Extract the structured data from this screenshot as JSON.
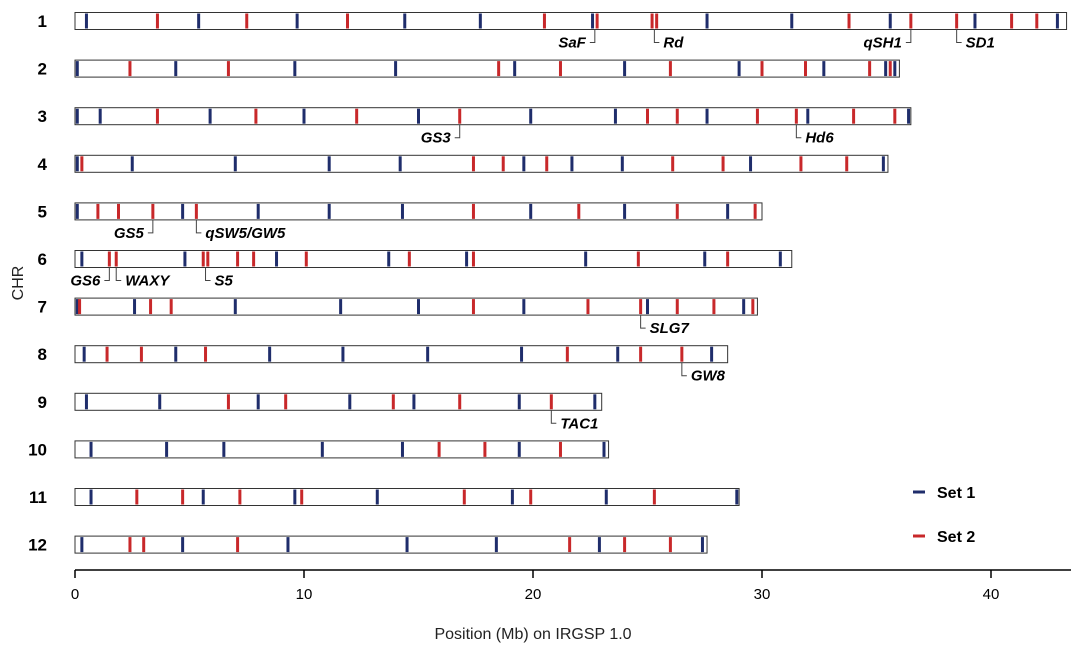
{
  "chart_data": {
    "type": "scatter",
    "xlabel": "Position (Mb) on IRGSP 1.0",
    "ylabel": "CHR",
    "xlim": [
      0,
      43.5
    ],
    "xticks": [
      0,
      10,
      20,
      30,
      40
    ],
    "grid": false,
    "legend_position": "right",
    "series_colors": {
      "Set 1": "#1f2d6b",
      "Set 2": "#c8282a"
    },
    "legend": [
      {
        "name": "Set 1",
        "color": "#1f2d6b"
      },
      {
        "name": "Set 2",
        "color": "#c8282a"
      }
    ],
    "chromosomes": [
      {
        "name": "1",
        "length": 43.3,
        "set1": [
          0.5,
          5.4,
          9.7,
          14.4,
          17.7,
          22.6,
          27.6,
          31.3,
          35.6,
          39.3,
          42.9
        ],
        "set2": [
          3.6,
          7.5,
          11.9,
          20.5,
          22.8,
          25.2,
          25.4,
          33.8,
          36.5,
          38.5,
          40.9,
          42.0
        ]
      },
      {
        "name": "2",
        "length": 36.0,
        "set1": [
          0.1,
          4.4,
          9.6,
          14.0,
          19.2,
          24.0,
          29.0,
          32.7,
          35.4,
          35.8
        ],
        "set2": [
          2.4,
          6.7,
          18.5,
          21.2,
          26.0,
          30.0,
          31.9,
          34.7,
          35.6
        ]
      },
      {
        "name": "3",
        "length": 36.5,
        "set1": [
          0.1,
          1.1,
          5.9,
          10.0,
          15.0,
          19.9,
          23.6,
          27.6,
          32.0,
          36.4
        ],
        "set2": [
          3.6,
          7.9,
          12.3,
          16.8,
          25.0,
          26.3,
          29.8,
          31.5,
          34.0,
          35.8
        ]
      },
      {
        "name": "4",
        "length": 35.5,
        "set1": [
          0.1,
          2.5,
          7.0,
          11.1,
          14.2,
          19.6,
          21.7,
          23.9,
          29.5,
          35.3
        ],
        "set2": [
          0.3,
          17.4,
          18.7,
          20.6,
          26.1,
          28.3,
          31.7,
          33.7
        ]
      },
      {
        "name": "5",
        "length": 30.0,
        "set1": [
          0.1,
          4.7,
          8.0,
          11.1,
          14.3,
          19.9,
          24.0,
          28.5
        ],
        "set2": [
          1.0,
          1.9,
          3.4,
          5.3,
          17.4,
          22.0,
          26.3,
          29.7
        ]
      },
      {
        "name": "6",
        "length": 31.3,
        "set1": [
          0.3,
          4.8,
          8.8,
          13.7,
          17.1,
          22.3,
          27.5,
          30.8
        ],
        "set2": [
          1.5,
          1.8,
          5.6,
          5.8,
          7.1,
          7.8,
          10.1,
          14.6,
          17.4,
          24.6,
          28.5
        ]
      },
      {
        "name": "7",
        "length": 29.8,
        "set1": [
          0.1,
          2.6,
          7.0,
          11.6,
          15.0,
          19.6,
          25.0,
          29.2
        ],
        "set2": [
          0.2,
          3.3,
          4.2,
          17.4,
          22.4,
          24.7,
          26.3,
          27.9,
          29.6
        ]
      },
      {
        "name": "8",
        "length": 28.5,
        "set1": [
          0.4,
          4.4,
          8.5,
          11.7,
          15.4,
          19.5,
          23.7,
          27.8
        ],
        "set2": [
          1.4,
          2.9,
          5.7,
          21.5,
          24.7,
          26.5
        ]
      },
      {
        "name": "9",
        "length": 23.0,
        "set1": [
          0.5,
          3.7,
          8.0,
          12.0,
          14.8,
          19.4,
          22.7
        ],
        "set2": [
          6.7,
          9.2,
          13.9,
          16.8,
          20.8
        ]
      },
      {
        "name": "10",
        "length": 23.3,
        "set1": [
          0.7,
          4.0,
          6.5,
          10.8,
          14.3,
          19.4,
          23.1
        ],
        "set2": [
          15.9,
          17.9,
          21.2
        ]
      },
      {
        "name": "11",
        "length": 29.0,
        "set1": [
          0.7,
          5.6,
          9.6,
          13.2,
          19.1,
          23.2,
          28.9
        ],
        "set2": [
          2.7,
          4.7,
          7.2,
          9.9,
          17.0,
          19.9,
          25.3
        ]
      },
      {
        "name": "12",
        "length": 27.6,
        "set1": [
          0.3,
          4.7,
          9.3,
          14.5,
          18.4,
          22.9,
          27.4
        ],
        "set2": [
          2.4,
          3.0,
          7.1,
          21.6,
          24.0,
          26.0
        ]
      }
    ],
    "annotations": [
      {
        "label": "SaF",
        "chr": 1,
        "pos": 22.7,
        "side": "left"
      },
      {
        "label": "Rd",
        "chr": 1,
        "pos": 25.3,
        "side": "right"
      },
      {
        "label": "qSH1",
        "chr": 1,
        "pos": 36.5,
        "side": "left"
      },
      {
        "label": "SD1",
        "chr": 1,
        "pos": 38.5,
        "side": "right"
      },
      {
        "label": "GS3",
        "chr": 3,
        "pos": 16.8,
        "side": "left"
      },
      {
        "label": "Hd6",
        "chr": 3,
        "pos": 31.5,
        "side": "right"
      },
      {
        "label": "GS5",
        "chr": 5,
        "pos": 3.4,
        "side": "left"
      },
      {
        "label": "qSW5/GW5",
        "chr": 5,
        "pos": 5.3,
        "side": "right"
      },
      {
        "label": "GS6",
        "chr": 6,
        "pos": 1.5,
        "side": "left"
      },
      {
        "label": "WAXY",
        "chr": 6,
        "pos": 1.8,
        "side": "right"
      },
      {
        "label": "S5",
        "chr": 6,
        "pos": 5.7,
        "side": "right"
      },
      {
        "label": "SLG7",
        "chr": 7,
        "pos": 24.7,
        "side": "right"
      },
      {
        "label": "GW8",
        "chr": 8,
        "pos": 26.5,
        "side": "right"
      },
      {
        "label": "TAC1",
        "chr": 9,
        "pos": 20.8,
        "side": "right"
      }
    ]
  }
}
